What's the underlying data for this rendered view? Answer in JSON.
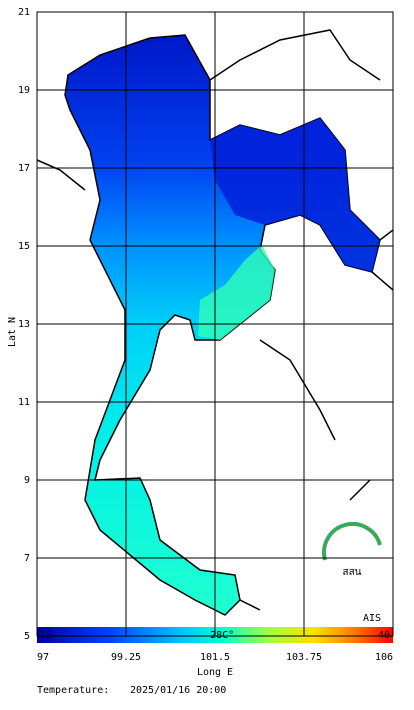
{
  "map": {
    "ylabel": "Lat N",
    "xlabel": "Long E",
    "xlim": [
      97,
      106
    ],
    "ylim": [
      5,
      21
    ],
    "xticks": [
      97,
      99.25,
      101.5,
      103.75,
      106
    ],
    "yticks": [
      21,
      19,
      17,
      15,
      13,
      11,
      9,
      7,
      5
    ]
  },
  "colorbar": {
    "range": [
      15,
      40
    ],
    "ticks": [
      15,
      {
        "value": 28,
        "label": "28C°"
      },
      40
    ]
  },
  "footer": {
    "label": "Temperature:",
    "datetime": "2025/01/16 20:00"
  },
  "logos": [
    "สสน",
    "AIS"
  ]
}
